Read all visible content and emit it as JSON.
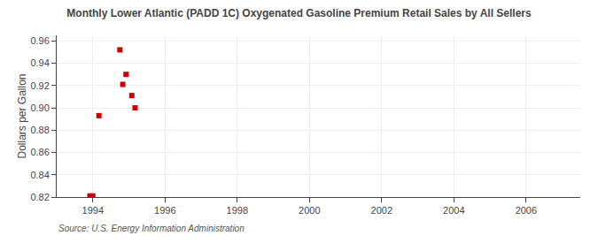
{
  "chart_data": {
    "type": "scatter",
    "title": "Monthly Lower Atlantic (PADD 1C) Oxygenated Gasoline Premium Retail Sales by All Sellers",
    "ylabel": "Dollars per Gallon",
    "annotations": [
      "Source: U.S. Energy Information Administration"
    ],
    "x": [
      1993.92,
      1994.0,
      1994.17,
      1994.75,
      1994.83,
      1994.92,
      1995.08,
      1995.17
    ],
    "values": [
      0.821,
      0.821,
      0.893,
      0.952,
      0.921,
      0.93,
      0.911,
      0.9
    ],
    "color": "#cc0000",
    "marker": "square",
    "xlim": [
      1993.0,
      2007.5
    ],
    "ylim": [
      0.82,
      0.965
    ],
    "xticks": [
      1994,
      1996,
      1998,
      2000,
      2002,
      2004,
      2006
    ],
    "yticks": [
      0.82,
      0.84,
      0.86,
      0.88,
      {
        "value": 0.9,
        "label": "0.90"
      },
      0.92,
      0.94,
      0.96
    ],
    "grid": true
  }
}
